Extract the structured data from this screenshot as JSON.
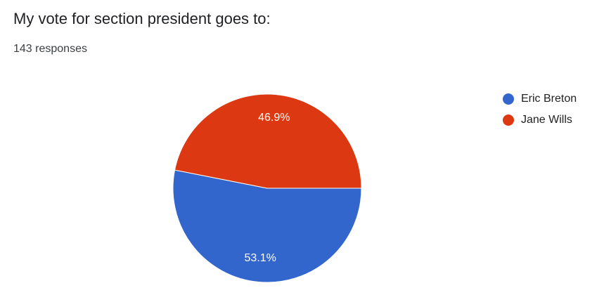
{
  "chart_data": {
    "type": "pie",
    "title": "My vote for section president goes to:",
    "subtitle": "143 responses",
    "categories": [
      "Eric Breton",
      "Jane Wills"
    ],
    "values": [
      53.1,
      46.9
    ],
    "value_labels": [
      "53.1%",
      "46.9%"
    ],
    "colors": [
      "#3366cc",
      "#dc3912"
    ]
  }
}
